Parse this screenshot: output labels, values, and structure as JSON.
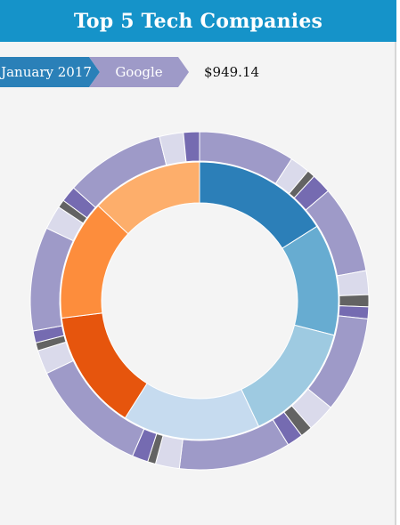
{
  "header": {
    "title": "Top 5 Tech Companies"
  },
  "breadcrumb": {
    "items": [
      "January 2017",
      "Google"
    ]
  },
  "selection": {
    "value": "$949.14"
  },
  "colors": {
    "header_bg": "#1593c9",
    "crumb_date": "#2a80b8",
    "crumb_company": "#9e9ac8"
  },
  "chart_data": {
    "type": "sunburst",
    "inner_ring": [
      {
        "value": 16,
        "color": "#2c7fb8"
      },
      {
        "value": 13,
        "color": "#67acd1"
      },
      {
        "value": 14,
        "color": "#9ecae1"
      },
      {
        "value": 16,
        "color": "#c6dbef"
      },
      {
        "value": 14,
        "color": "#e6550d"
      },
      {
        "value": 14,
        "color": "#fd8d3c"
      },
      {
        "value": 13,
        "color": "#fdae6b"
      }
    ],
    "outer_ring": [
      {
        "value": 12.0,
        "color": "#9e9ac8"
      },
      {
        "value": 2.5,
        "color": "#dadaeb"
      },
      {
        "value": 1.0,
        "color": "#636363"
      },
      {
        "value": 2.5,
        "color": "#756bb1"
      },
      {
        "value": 11.0,
        "color": "#9e9ac8"
      },
      {
        "value": 3.0,
        "color": "#dadaeb"
      },
      {
        "value": 1.5,
        "color": "#636363"
      },
      {
        "value": 1.5,
        "color": "#756bb1"
      },
      {
        "value": 12.0,
        "color": "#9e9ac8"
      },
      {
        "value": 3.5,
        "color": "#dadaeb"
      },
      {
        "value": 1.5,
        "color": "#636363"
      },
      {
        "value": 2.0,
        "color": "#756bb1"
      },
      {
        "value": 14.0,
        "color": "#9e9ac8"
      },
      {
        "value": 3.0,
        "color": "#dadaeb"
      },
      {
        "value": 1.0,
        "color": "#636363"
      },
      {
        "value": 2.0,
        "color": "#756bb1"
      },
      {
        "value": 15.0,
        "color": "#9e9ac8"
      },
      {
        "value": 3.0,
        "color": "#dadaeb"
      },
      {
        "value": 1.0,
        "color": "#636363"
      },
      {
        "value": 1.5,
        "color": "#756bb1"
      },
      {
        "value": 13.0,
        "color": "#9e9ac8"
      },
      {
        "value": 3.0,
        "color": "#dadaeb"
      },
      {
        "value": 1.0,
        "color": "#636363"
      },
      {
        "value": 2.0,
        "color": "#756bb1"
      },
      {
        "value": 12.5,
        "color": "#9e9ac8"
      },
      {
        "value": 3.0,
        "color": "#dadaeb"
      },
      {
        "value": 2.0,
        "color": "#756bb1"
      }
    ]
  }
}
